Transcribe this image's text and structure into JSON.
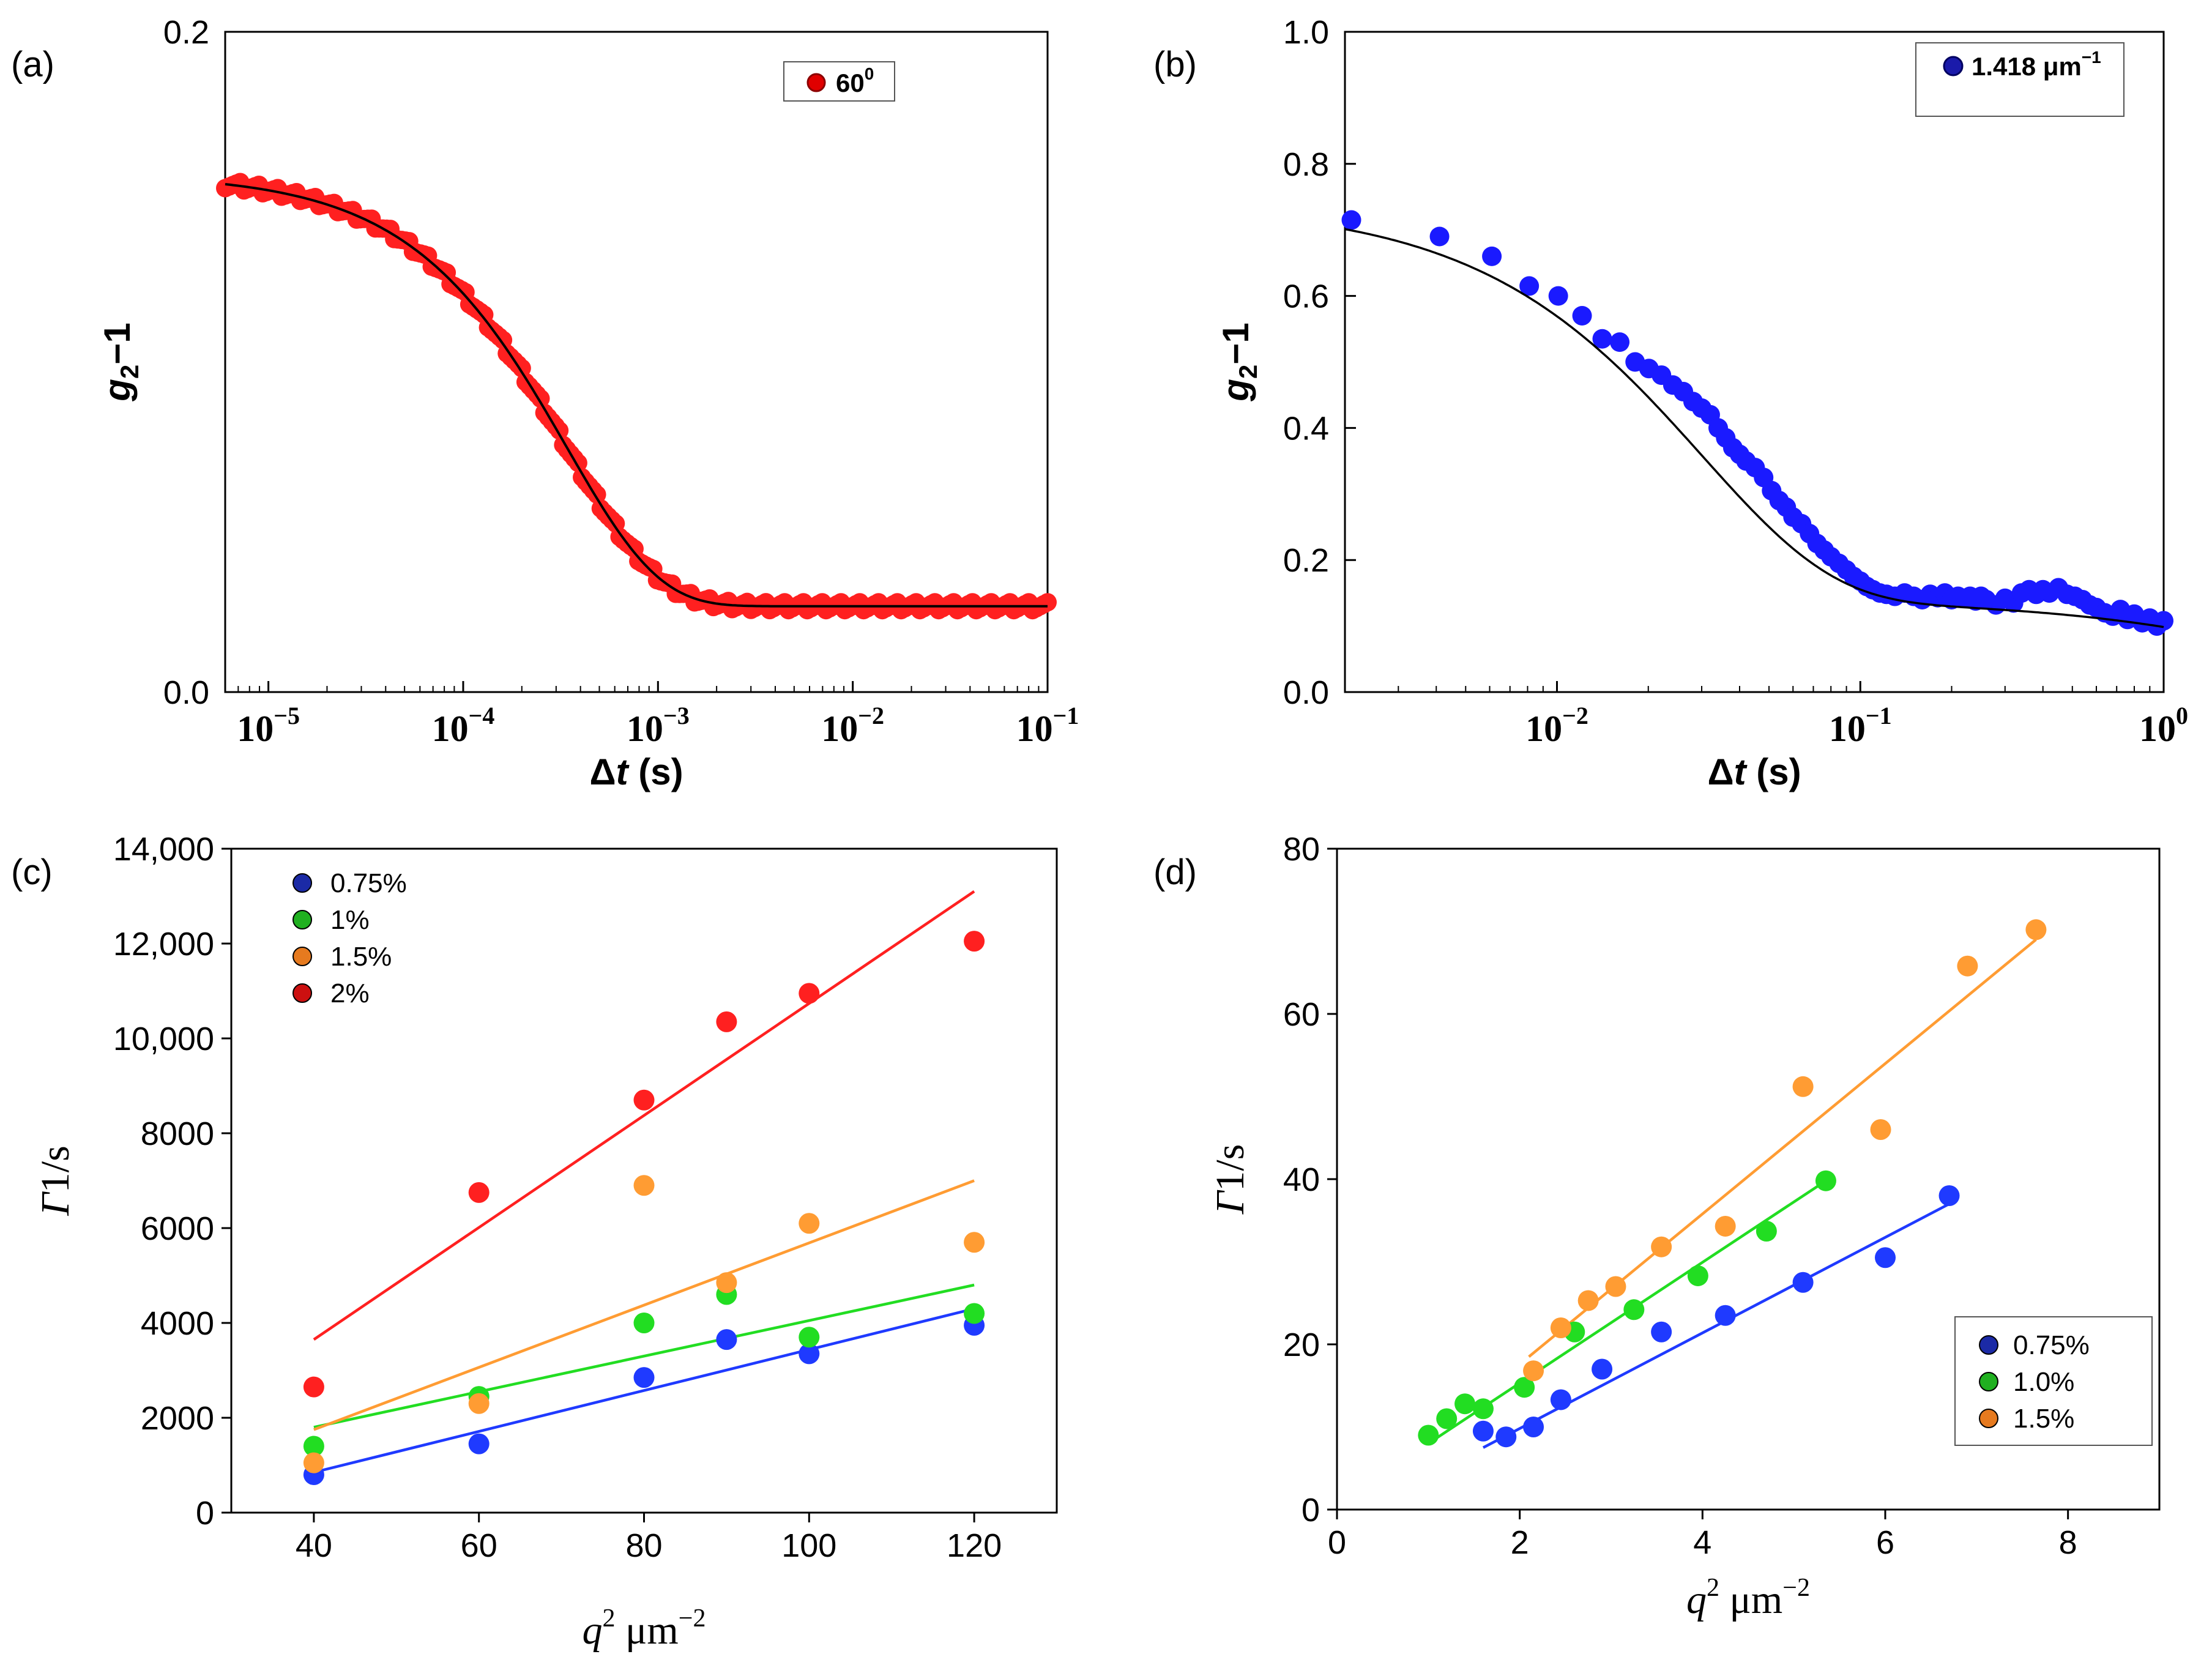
{
  "chart_data": [
    {
      "panel": "(a)",
      "type": "scatter",
      "xscale": "log",
      "xlim": [
        6e-06,
        0.1
      ],
      "ylim": [
        0.0,
        0.2
      ],
      "ytick_values": [
        0.0,
        0.2
      ],
      "ytick_labels": [
        "0.0",
        "0.2"
      ],
      "xtick_values": [
        1e-05,
        0.0001,
        0.001,
        0.01,
        0.1
      ],
      "xtick_bases": [
        "10",
        "10",
        "10",
        "10",
        "10"
      ],
      "xtick_exps": [
        "−5",
        "−4",
        "−3",
        "−2",
        "−1"
      ],
      "xlabel": "Δt (s)",
      "xlabel_main": "Δ",
      "xlabel_italic": "t",
      "xlabel_rest": " (s)",
      "ylabel_main": "g",
      "ylabel_sub": "2",
      "ylabel_rest": "−1",
      "legend": {
        "label": "60",
        "sup": "0",
        "color": "#e00000",
        "edge": "#8b0000"
      },
      "model": {
        "type": "stretched",
        "A": 0.131,
        "tau": 0.00034,
        "beta": 0.92,
        "base": 0.026
      },
      "series": [
        {
          "name": "60⁰",
          "color": "#ff2020",
          "x_range": [
            6e-06,
            0.1
          ],
          "points": 220
        }
      ],
      "fit_color": "#000000"
    },
    {
      "panel": "(b)",
      "type": "scatter",
      "xscale": "log",
      "xlim": [
        0.002,
        1.0
      ],
      "ylim": [
        0.0,
        1.0
      ],
      "ytick_values": [
        0.0,
        0.2,
        0.4,
        0.6,
        0.8,
        1.0
      ],
      "ytick_labels": [
        "0.0",
        "0.2",
        "0.4",
        "0.6",
        "0.8",
        "1.0"
      ],
      "xtick_values": [
        0.01,
        0.1,
        1.0
      ],
      "xtick_bases": [
        "10",
        "10",
        "10"
      ],
      "xtick_exps": [
        "−2",
        "−1",
        "0"
      ],
      "xlabel": "Δt (s)",
      "xlabel_main": "Δ",
      "xlabel_italic": "t",
      "xlabel_rest": " (s)",
      "ylabel_main": "g",
      "ylabel_sub": "2",
      "ylabel_rest": "−1",
      "legend": {
        "label": "1.418 μm",
        "sup": "−1",
        "color": "#1a1aaa",
        "edge": "#000060"
      },
      "model": {
        "type": "double",
        "A1": 0.6,
        "tau1": 0.03,
        "b1": 1.0,
        "A2": 0.14,
        "tau2": 3.2,
        "b2": 0.9
      },
      "points": [
        [
          0.0021,
          0.715
        ],
        [
          0.0041,
          0.69
        ],
        [
          0.0061,
          0.66
        ],
        [
          0.0081,
          0.615
        ],
        [
          0.0101,
          0.6
        ],
        [
          0.0121,
          0.57
        ],
        [
          0.0141,
          0.535
        ],
        [
          0.0161,
          0.53
        ],
        [
          0.0181,
          0.5
        ],
        [
          0.0201,
          0.49
        ],
        [
          0.0221,
          0.48
        ],
        [
          0.0241,
          0.465
        ],
        [
          0.0261,
          0.455
        ],
        [
          0.0281,
          0.44
        ],
        [
          0.03,
          0.43
        ],
        [
          0.032,
          0.42
        ],
        [
          0.034,
          0.4
        ],
        [
          0.036,
          0.385
        ],
        [
          0.038,
          0.37
        ],
        [
          0.04,
          0.36
        ],
        [
          0.042,
          0.35
        ],
        [
          0.045,
          0.34
        ],
        [
          0.048,
          0.325
        ],
        [
          0.051,
          0.305
        ],
        [
          0.054,
          0.29
        ],
        [
          0.057,
          0.28
        ],
        [
          0.06,
          0.265
        ],
        [
          0.064,
          0.255
        ],
        [
          0.068,
          0.24
        ],
        [
          0.072,
          0.225
        ],
        [
          0.076,
          0.215
        ],
        [
          0.08,
          0.205
        ],
        [
          0.085,
          0.195
        ],
        [
          0.09,
          0.185
        ],
        [
          0.095,
          0.175
        ],
        [
          0.1,
          0.168
        ],
        [
          0.105,
          0.16
        ],
        [
          0.11,
          0.155
        ],
        [
          0.116,
          0.15
        ],
        [
          0.122,
          0.148
        ],
        [
          0.13,
          0.145
        ],
        [
          0.14,
          0.15
        ],
        [
          0.15,
          0.145
        ],
        [
          0.16,
          0.14
        ],
        [
          0.17,
          0.148
        ],
        [
          0.18,
          0.143
        ],
        [
          0.19,
          0.15
        ],
        [
          0.2,
          0.14
        ],
        [
          0.21,
          0.145
        ],
        [
          0.22,
          0.142
        ],
        [
          0.23,
          0.145
        ],
        [
          0.24,
          0.138
        ],
        [
          0.25,
          0.145
        ],
        [
          0.26,
          0.14
        ],
        [
          0.28,
          0.132
        ],
        [
          0.3,
          0.142
        ],
        [
          0.32,
          0.135
        ],
        [
          0.34,
          0.15
        ],
        [
          0.36,
          0.155
        ],
        [
          0.38,
          0.148
        ],
        [
          0.4,
          0.155
        ],
        [
          0.42,
          0.15
        ],
        [
          0.45,
          0.158
        ],
        [
          0.48,
          0.148
        ],
        [
          0.51,
          0.145
        ],
        [
          0.54,
          0.14
        ],
        [
          0.57,
          0.132
        ],
        [
          0.6,
          0.128
        ],
        [
          0.64,
          0.12
        ],
        [
          0.68,
          0.115
        ],
        [
          0.72,
          0.125
        ],
        [
          0.76,
          0.11
        ],
        [
          0.8,
          0.118
        ],
        [
          0.85,
          0.105
        ],
        [
          0.9,
          0.112
        ],
        [
          0.95,
          0.1
        ],
        [
          1.0,
          0.108
        ]
      ],
      "point_color": "#1a1aff",
      "fit_color": "#000000"
    },
    {
      "panel": "(c)",
      "type": "scatter",
      "xlim": [
        30,
        130
      ],
      "ylim": [
        0,
        14000
      ],
      "xtick_values": [
        40,
        60,
        80,
        100,
        120
      ],
      "xtick_labels": [
        "40",
        "60",
        "80",
        "100",
        "120"
      ],
      "ytick_values": [
        0,
        2000,
        4000,
        6000,
        8000,
        10000,
        12000,
        14000
      ],
      "ytick_labels": [
        "0",
        "2000",
        "4000",
        "6000",
        "8000",
        "10,000",
        "12,000",
        "14,000"
      ],
      "xlabel_main": "q",
      "xlabel_sup": "2",
      "xlabel_rest": " μm",
      "xlabel_sup2": "−2",
      "ylabel": "Γ1/s",
      "ylabel_italic": "Γ",
      "ylabel_rest": "1/s",
      "legend": {
        "position": "top-left"
      },
      "series": [
        {
          "name": "0.75%",
          "color": "#1f3aff",
          "legend_color": "#1b2aa6",
          "x": [
            40,
            60,
            80,
            90,
            100,
            120
          ],
          "y": [
            800,
            1450,
            2850,
            3650,
            3350,
            3950
          ],
          "fit": [
            [
              40,
              850
            ],
            [
              120,
              4300
            ]
          ]
        },
        {
          "name": "1%",
          "color": "#22dd22",
          "legend_color": "#20b020",
          "x": [
            40,
            60,
            80,
            90,
            100,
            120
          ],
          "y": [
            1400,
            2450,
            4000,
            4600,
            3700,
            4200
          ],
          "fit": [
            [
              40,
              1800
            ],
            [
              120,
              4800
            ]
          ]
        },
        {
          "name": "1.5%",
          "color": "#ff9c33",
          "legend_color": "#e67a1f",
          "x": [
            40,
            60,
            80,
            90,
            100,
            120
          ],
          "y": [
            1050,
            2300,
            6900,
            4850,
            6100,
            5700
          ],
          "fit": [
            [
              40,
              1750
            ],
            [
              120,
              7000
            ]
          ]
        },
        {
          "name": "2%",
          "color": "#ff2020",
          "legend_color": "#cc1010",
          "x": [
            40,
            60,
            80,
            90,
            100,
            120
          ],
          "y": [
            2650,
            6750,
            8700,
            10350,
            10950,
            12050
          ],
          "fit": [
            [
              40,
              3650
            ],
            [
              120,
              13100
            ]
          ]
        }
      ]
    },
    {
      "panel": "(d)",
      "type": "scatter",
      "xlim": [
        0,
        9
      ],
      "ylim": [
        0,
        80
      ],
      "xtick_values": [
        0,
        2,
        4,
        6,
        8
      ],
      "xtick_labels": [
        "0",
        "2",
        "4",
        "6",
        "8"
      ],
      "ytick_values": [
        0,
        20,
        40,
        60,
        80
      ],
      "ytick_labels": [
        "0",
        "20",
        "40",
        "60",
        "80"
      ],
      "xlabel_main": "q",
      "xlabel_sup": "2",
      "xlabel_rest": " μm",
      "xlabel_sup2": "−2",
      "ylabel": "Γ1/s",
      "ylabel_italic": "Γ",
      "ylabel_rest": "1/s",
      "legend": {
        "position": "bottom-right"
      },
      "series": [
        {
          "name": "0.75%",
          "color": "#1f3aff",
          "legend_color": "#1b2aa6",
          "x": [
            1.6,
            1.85,
            2.15,
            2.45,
            2.9,
            3.55,
            4.25,
            5.1,
            6.0,
            6.7
          ],
          "y": [
            9.5,
            8.8,
            10.0,
            13.3,
            17.0,
            21.5,
            23.5,
            27.5,
            30.5,
            38.0
          ],
          "fit": [
            [
              1.6,
              7.5
            ],
            [
              6.7,
              37.0
            ]
          ]
        },
        {
          "name": "1.0%",
          "color": "#22dd22",
          "legend_color": "#20b020",
          "x": [
            1.0,
            1.2,
            1.4,
            1.6,
            2.05,
            2.6,
            3.25,
            3.95,
            4.7,
            5.35
          ],
          "y": [
            9.0,
            11.0,
            12.8,
            12.2,
            14.8,
            21.5,
            24.2,
            28.3,
            33.7,
            39.8
          ],
          "fit": [
            [
              1.0,
              8.0
            ],
            [
              5.35,
              39.8
            ]
          ]
        },
        {
          "name": "1.5%",
          "color": "#ff9c33",
          "legend_color": "#e67a1f",
          "x": [
            2.15,
            2.45,
            2.75,
            3.05,
            3.55,
            4.25,
            5.1,
            5.95,
            6.9,
            7.65
          ],
          "y": [
            16.8,
            22.0,
            25.3,
            27.0,
            31.8,
            34.3,
            51.2,
            46.0,
            65.8,
            70.2
          ],
          "fit": [
            [
              2.1,
              18.5
            ],
            [
              7.65,
              69.0
            ]
          ]
        }
      ]
    }
  ]
}
